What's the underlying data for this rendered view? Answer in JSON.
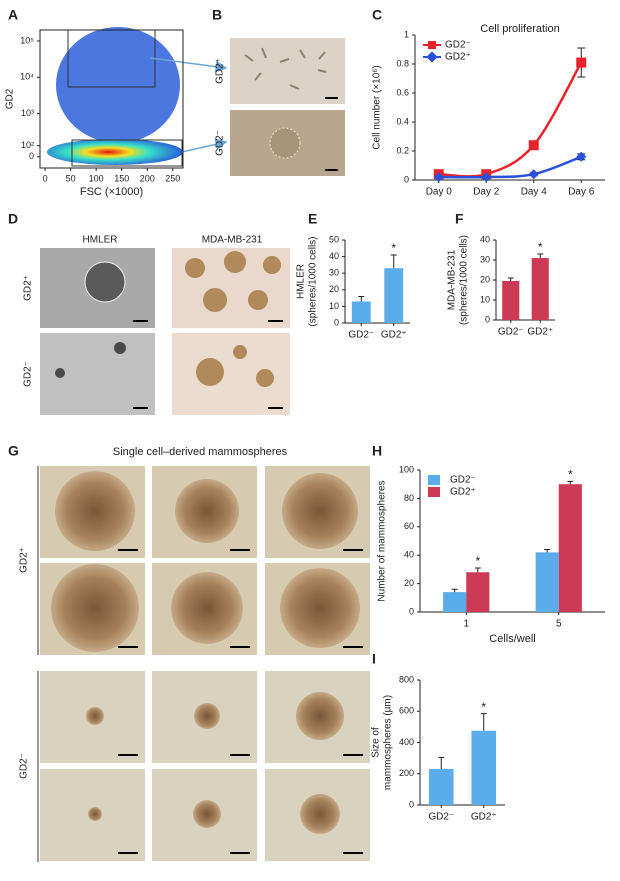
{
  "panel_letters": [
    "A",
    "B",
    "C",
    "D",
    "E",
    "F",
    "G",
    "H",
    "I"
  ],
  "panel_b": {
    "row_labels": [
      "GD2⁺",
      "GD2⁻"
    ]
  },
  "panel_d": {
    "column_labels": [
      "HMLER",
      "MDA-MB-231"
    ],
    "row_labels": [
      "GD2⁺",
      "GD2⁻"
    ]
  },
  "panel_g": {
    "title": "Single cell–derived mammospheres",
    "row_labels": [
      "GD2⁺",
      "GD2⁻"
    ]
  },
  "chart_data": [
    {
      "type": "density",
      "xlabel": "FSC (×1000)",
      "ylabel": [
        "GD2"
      ],
      "xlim": [
        -10,
        270
      ],
      "xticks": [
        0,
        50,
        100,
        150,
        200,
        250
      ],
      "ylim": [
        -100,
        200000
      ],
      "yscale": "biexponential",
      "yticks": [
        0,
        {
          "value": 100,
          "label": "10²"
        },
        {
          "value": 1000,
          "label": "10³"
        },
        {
          "value": 10000,
          "label": "10⁴"
        },
        {
          "value": 100000,
          "label": "10⁵"
        }
      ]
    },
    {
      "type": "line",
      "title": "Cell proliferation",
      "ylabel": [
        "Cell number (×10⁶)"
      ],
      "categories": [
        "Day 0",
        "Day 2",
        "Day 4",
        "Day 6"
      ],
      "series": [
        {
          "name": "GD2⁻",
          "color": "#e8232a",
          "marker": "square",
          "values": [
            0.04,
            0.04,
            0.24,
            0.81
          ],
          "errors": [
            0.01,
            0.01,
            0.02,
            0.1
          ]
        },
        {
          "name": "GD2⁺",
          "color": "#2a4fd8",
          "marker": "diamond",
          "values": [
            0.02,
            0.02,
            0.04,
            0.16
          ],
          "errors": [
            0.005,
            0.005,
            0.01,
            0.02
          ]
        }
      ],
      "ylim": [
        0,
        1
      ],
      "yticks": [
        0,
        0.2,
        0.4,
        0.6,
        0.8,
        1
      ],
      "legend": "upper left"
    },
    {
      "type": "bar",
      "ylabel": [
        "HMLER",
        "(spheres/1000 cells)"
      ],
      "categories": [
        "GD2⁻",
        "GD2⁺"
      ],
      "series": [
        {
          "color": "#5aacea",
          "values": [
            13,
            33
          ],
          "errors": [
            3,
            8
          ],
          "annotations": [
            null,
            "*"
          ]
        }
      ],
      "ylim": [
        0,
        50
      ],
      "yticks": [
        0,
        10,
        20,
        30,
        40,
        50
      ]
    },
    {
      "type": "bar",
      "ylabel": [
        "MDA-MB-231",
        "(spheres/1000 cells)"
      ],
      "categories": [
        "GD2⁻",
        "GD2⁺"
      ],
      "series": [
        {
          "color": "#cc3a55",
          "values": [
            19.5,
            31
          ],
          "errors": [
            1.5,
            2
          ],
          "annotations": [
            null,
            "*"
          ]
        }
      ],
      "ylim": [
        0,
        40
      ],
      "yticks": [
        0,
        10,
        20,
        30,
        40
      ]
    },
    {
      "type": "bar",
      "ylabel": [
        "Number of mammospheres"
      ],
      "xlabel": "Cells/well",
      "categories": [
        "1",
        "5"
      ],
      "series": [
        {
          "name": "GD2⁻",
          "color": "#5aacea",
          "values": [
            14,
            42
          ],
          "errors": [
            2,
            2
          ],
          "annotations": [
            null,
            null
          ]
        },
        {
          "name": "GD2⁺",
          "color": "#cc3a55",
          "values": [
            28,
            90
          ],
          "errors": [
            3,
            2
          ],
          "annotations": [
            "*",
            "*"
          ]
        }
      ],
      "ylim": [
        0,
        100
      ],
      "yticks": [
        0,
        20,
        40,
        60,
        80,
        100
      ],
      "legend": "upper left"
    },
    {
      "type": "bar",
      "ylabel": [
        "Size of",
        "mammospheres (μm)"
      ],
      "categories": [
        "GD2⁻",
        "GD2⁺"
      ],
      "series": [
        {
          "color": "#5aacea",
          "values": [
            230,
            475
          ],
          "errors": [
            75,
            110
          ],
          "annotations": [
            null,
            "*"
          ]
        }
      ],
      "ylim": [
        0,
        800
      ],
      "yticks": [
        0,
        200,
        400,
        600,
        800
      ]
    }
  ]
}
